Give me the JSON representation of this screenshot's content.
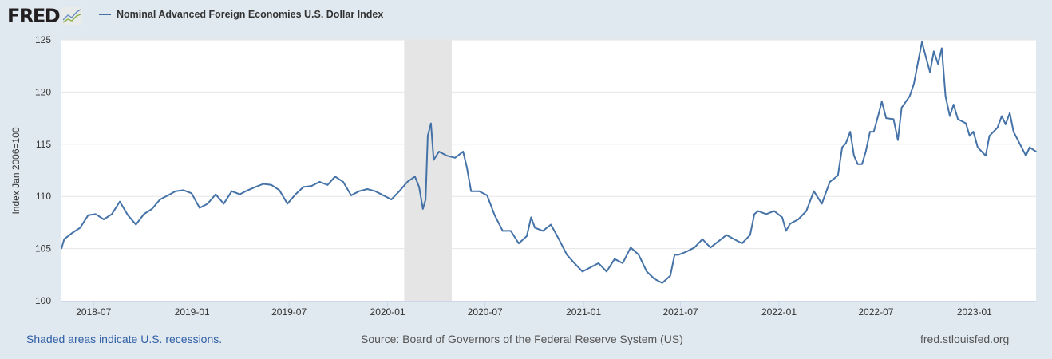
{
  "header": {
    "logo_text": "FRED",
    "legend_label": "Nominal Advanced Foreign Economies U.S. Dollar Index"
  },
  "footer": {
    "recession_note": "Shaded areas indicate U.S. recessions.",
    "source": "Source: Board of Governors of the Federal Reserve System (US)",
    "site": "fred.stlouisfed.org"
  },
  "colors": {
    "line": "#4572a7",
    "recession": "#e5e5e5",
    "background": "#e1e9f0",
    "link": "#2f5fa5"
  },
  "chart_data": {
    "type": "line",
    "title": "",
    "xlabel": "",
    "ylabel": "Index Jan 2006=100",
    "xlim": [
      "2018-05-02",
      "2023-04-26"
    ],
    "ylim": [
      100,
      125
    ],
    "yticks": [
      100,
      105,
      110,
      115,
      120,
      125
    ],
    "xticks": [
      "2018-07",
      "2019-01",
      "2019-07",
      "2020-01",
      "2020-07",
      "2021-01",
      "2021-07",
      "2022-01",
      "2022-07",
      "2023-01"
    ],
    "grid": true,
    "legend_position": "top-left",
    "recessions": [
      {
        "start": "2020-02-01",
        "end": "2020-04-30"
      }
    ],
    "series": [
      {
        "name": "Nominal Advanced Foreign Economies U.S. Dollar Index",
        "points": [
          [
            "2018-05-02",
            105.0
          ],
          [
            "2018-05-07",
            105.9
          ],
          [
            "2018-05-22",
            106.5
          ],
          [
            "2018-06-06",
            107.0
          ],
          [
            "2018-06-21",
            108.2
          ],
          [
            "2018-07-05",
            108.3
          ],
          [
            "2018-07-20",
            107.8
          ],
          [
            "2018-08-04",
            108.3
          ],
          [
            "2018-08-19",
            109.5
          ],
          [
            "2018-09-03",
            108.2
          ],
          [
            "2018-09-18",
            107.3
          ],
          [
            "2018-10-03",
            108.3
          ],
          [
            "2018-10-18",
            108.8
          ],
          [
            "2018-11-02",
            109.7
          ],
          [
            "2018-11-17",
            110.1
          ],
          [
            "2018-12-01",
            110.5
          ],
          [
            "2018-12-16",
            110.6
          ],
          [
            "2018-12-31",
            110.3
          ],
          [
            "2019-01-15",
            108.9
          ],
          [
            "2019-01-30",
            109.3
          ],
          [
            "2019-02-14",
            110.2
          ],
          [
            "2019-03-01",
            109.3
          ],
          [
            "2019-03-16",
            110.5
          ],
          [
            "2019-03-31",
            110.2
          ],
          [
            "2019-04-15",
            110.6
          ],
          [
            "2019-04-29",
            110.9
          ],
          [
            "2019-05-14",
            111.2
          ],
          [
            "2019-05-29",
            111.1
          ],
          [
            "2019-06-13",
            110.6
          ],
          [
            "2019-06-28",
            109.3
          ],
          [
            "2019-07-13",
            110.2
          ],
          [
            "2019-07-28",
            110.9
          ],
          [
            "2019-08-12",
            111.0
          ],
          [
            "2019-08-27",
            111.4
          ],
          [
            "2019-09-11",
            111.1
          ],
          [
            "2019-09-25",
            111.9
          ],
          [
            "2019-10-10",
            111.4
          ],
          [
            "2019-10-25",
            110.1
          ],
          [
            "2019-11-09",
            110.5
          ],
          [
            "2019-11-24",
            110.7
          ],
          [
            "2019-12-09",
            110.5
          ],
          [
            "2019-12-24",
            110.1
          ],
          [
            "2020-01-08",
            109.7
          ],
          [
            "2020-01-23",
            110.5
          ],
          [
            "2020-02-07",
            111.4
          ],
          [
            "2020-02-21",
            111.9
          ],
          [
            "2020-02-29",
            110.9
          ],
          [
            "2020-03-07",
            108.8
          ],
          [
            "2020-03-12",
            109.7
          ],
          [
            "2020-03-16",
            115.8
          ],
          [
            "2020-03-22",
            117.0
          ],
          [
            "2020-03-27",
            113.5
          ],
          [
            "2020-04-06",
            114.3
          ],
          [
            "2020-04-21",
            113.9
          ],
          [
            "2020-05-06",
            113.7
          ],
          [
            "2020-05-21",
            114.3
          ],
          [
            "2020-05-28",
            112.8
          ],
          [
            "2020-06-05",
            110.5
          ],
          [
            "2020-06-20",
            110.5
          ],
          [
            "2020-07-05",
            110.1
          ],
          [
            "2020-07-19",
            108.2
          ],
          [
            "2020-08-03",
            106.7
          ],
          [
            "2020-08-18",
            106.7
          ],
          [
            "2020-09-02",
            105.5
          ],
          [
            "2020-09-17",
            106.2
          ],
          [
            "2020-09-25",
            108.0
          ],
          [
            "2020-10-02",
            107.0
          ],
          [
            "2020-10-17",
            106.7
          ],
          [
            "2020-11-01",
            107.3
          ],
          [
            "2020-11-16",
            105.9
          ],
          [
            "2020-12-01",
            104.4
          ],
          [
            "2020-12-15",
            103.6
          ],
          [
            "2020-12-30",
            102.8
          ],
          [
            "2021-01-14",
            103.2
          ],
          [
            "2021-01-29",
            103.6
          ],
          [
            "2021-02-13",
            102.8
          ],
          [
            "2021-02-28",
            104.0
          ],
          [
            "2021-03-15",
            103.6
          ],
          [
            "2021-03-30",
            105.1
          ],
          [
            "2021-04-14",
            104.4
          ],
          [
            "2021-04-29",
            102.8
          ],
          [
            "2021-05-13",
            102.1
          ],
          [
            "2021-05-28",
            101.7
          ],
          [
            "2021-06-12",
            102.4
          ],
          [
            "2021-06-20",
            104.4
          ],
          [
            "2021-06-27",
            104.4
          ],
          [
            "2021-07-12",
            104.7
          ],
          [
            "2021-07-27",
            105.1
          ],
          [
            "2021-08-11",
            105.9
          ],
          [
            "2021-08-26",
            105.1
          ],
          [
            "2021-09-10",
            105.7
          ],
          [
            "2021-09-25",
            106.3
          ],
          [
            "2021-10-09",
            105.9
          ],
          [
            "2021-10-24",
            105.5
          ],
          [
            "2021-11-08",
            106.3
          ],
          [
            "2021-11-16",
            108.3
          ],
          [
            "2021-11-23",
            108.6
          ],
          [
            "2021-12-08",
            108.3
          ],
          [
            "2021-12-23",
            108.6
          ],
          [
            "2022-01-07",
            108.0
          ],
          [
            "2022-01-14",
            106.7
          ],
          [
            "2022-01-22",
            107.4
          ],
          [
            "2022-02-06",
            107.8
          ],
          [
            "2022-02-21",
            108.6
          ],
          [
            "2022-03-07",
            110.5
          ],
          [
            "2022-03-22",
            109.3
          ],
          [
            "2022-04-06",
            111.4
          ],
          [
            "2022-04-21",
            112.0
          ],
          [
            "2022-04-29",
            114.7
          ],
          [
            "2022-05-06",
            115.1
          ],
          [
            "2022-05-14",
            116.2
          ],
          [
            "2022-05-21",
            113.9
          ],
          [
            "2022-05-28",
            113.1
          ],
          [
            "2022-06-05",
            113.1
          ],
          [
            "2022-06-12",
            114.3
          ],
          [
            "2022-06-20",
            116.2
          ],
          [
            "2022-06-27",
            116.2
          ],
          [
            "2022-07-05",
            117.7
          ],
          [
            "2022-07-12",
            119.1
          ],
          [
            "2022-07-20",
            117.5
          ],
          [
            "2022-08-03",
            117.4
          ],
          [
            "2022-08-11",
            115.4
          ],
          [
            "2022-08-18",
            118.5
          ],
          [
            "2022-09-02",
            119.6
          ],
          [
            "2022-09-10",
            120.8
          ],
          [
            "2022-09-17",
            122.7
          ],
          [
            "2022-09-25",
            124.8
          ],
          [
            "2022-10-02",
            123.4
          ],
          [
            "2022-10-10",
            121.9
          ],
          [
            "2022-10-17",
            123.9
          ],
          [
            "2022-10-25",
            122.7
          ],
          [
            "2022-11-01",
            124.2
          ],
          [
            "2022-11-08",
            119.6
          ],
          [
            "2022-11-16",
            117.7
          ],
          [
            "2022-11-23",
            118.8
          ],
          [
            "2022-12-01",
            117.4
          ],
          [
            "2022-12-16",
            117.0
          ],
          [
            "2022-12-23",
            115.8
          ],
          [
            "2022-12-30",
            116.2
          ],
          [
            "2023-01-07",
            114.7
          ],
          [
            "2023-01-22",
            113.9
          ],
          [
            "2023-01-29",
            115.8
          ],
          [
            "2023-02-13",
            116.6
          ],
          [
            "2023-02-21",
            117.7
          ],
          [
            "2023-02-28",
            116.9
          ],
          [
            "2023-03-08",
            118.0
          ],
          [
            "2023-03-15",
            116.2
          ],
          [
            "2023-03-23",
            115.4
          ],
          [
            "2023-04-07",
            113.9
          ],
          [
            "2023-04-14",
            114.7
          ],
          [
            "2023-04-26",
            114.3
          ]
        ]
      }
    ]
  }
}
